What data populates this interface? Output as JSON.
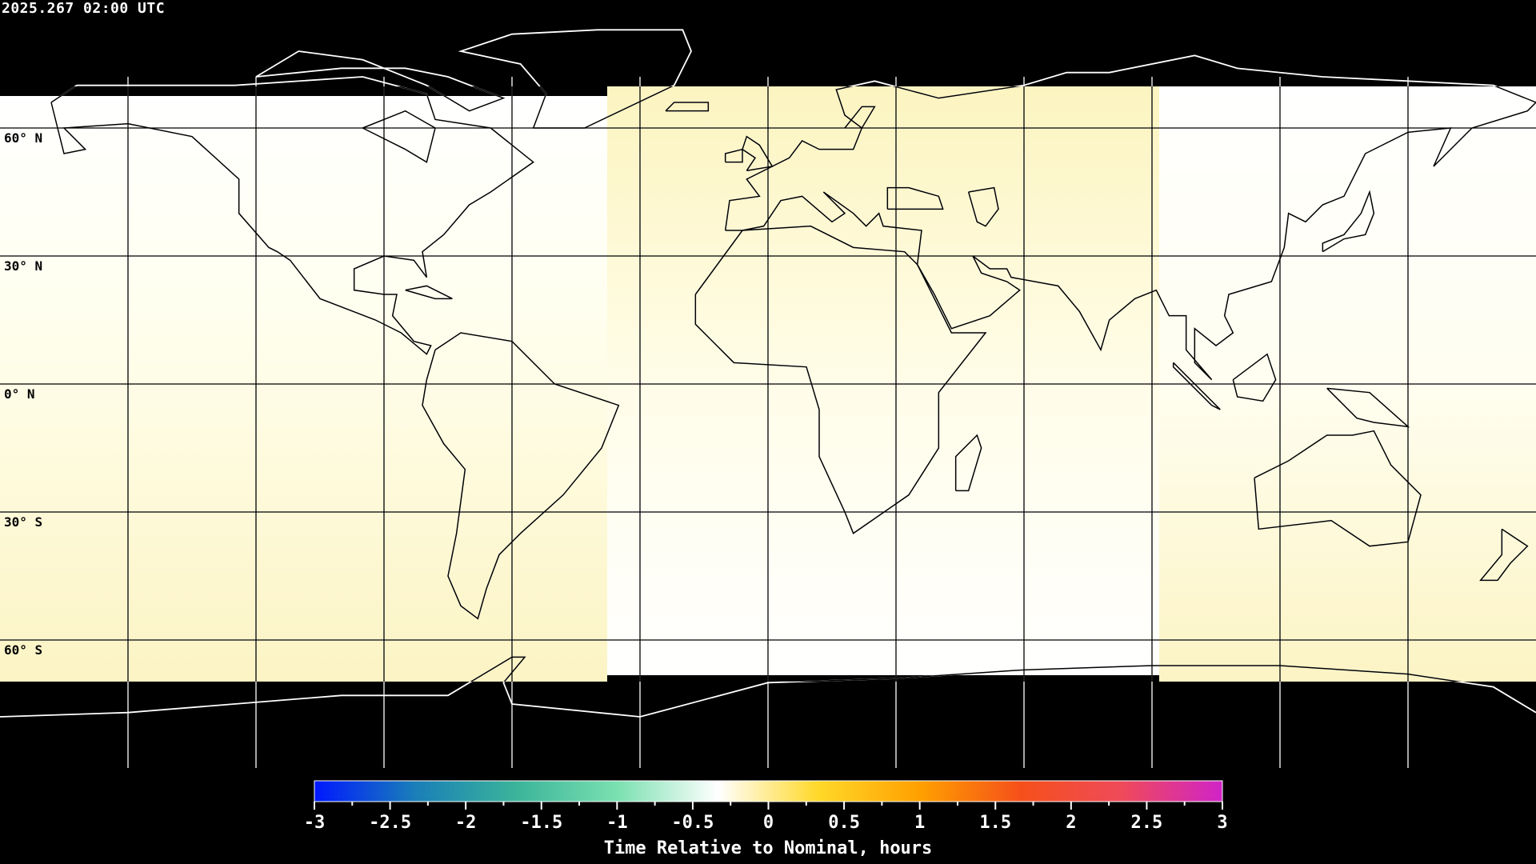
{
  "header": {
    "timestamp": "2025.267 02:00 UTC"
  },
  "map": {
    "projection": "equirectangular",
    "lat_labels": [
      "60° N",
      "30° N",
      "0° N",
      "30° S",
      "60° S"
    ],
    "lat_values": [
      60,
      30,
      0,
      -30,
      -60
    ],
    "lon_grid_step": 30,
    "no_data_color": "#000000",
    "grid_color_on_data": "#000000",
    "grid_color_on_nodata": "#ffffff",
    "regions": [
      {
        "lon_range": [
          -180,
          -38
        ],
        "values_north_to_south": [
          0.05,
          0.3
        ]
      },
      {
        "lon_range": [
          -38,
          91
        ],
        "values_north_to_south": [
          0.3,
          0.02
        ]
      },
      {
        "lon_range": [
          91,
          180
        ],
        "values_north_to_south": [
          0.02,
          0.3
        ]
      }
    ]
  },
  "colorbar": {
    "title": "Time Relative to Nominal, hours",
    "min": -3,
    "max": 3,
    "tick_labels": [
      "-3",
      "-2.5",
      "-2",
      "-1.5",
      "-1",
      "-0.5",
      "0",
      "0.5",
      "1",
      "1.5",
      "2",
      "2.5",
      "3"
    ],
    "colors": [
      "#0018ff",
      "#1a7fb8",
      "#3bb49a",
      "#7ae0b0",
      "#ffffff",
      "#ffd828",
      "#ffa000",
      "#f5501a",
      "#ef4a5a",
      "#d024c8"
    ]
  }
}
